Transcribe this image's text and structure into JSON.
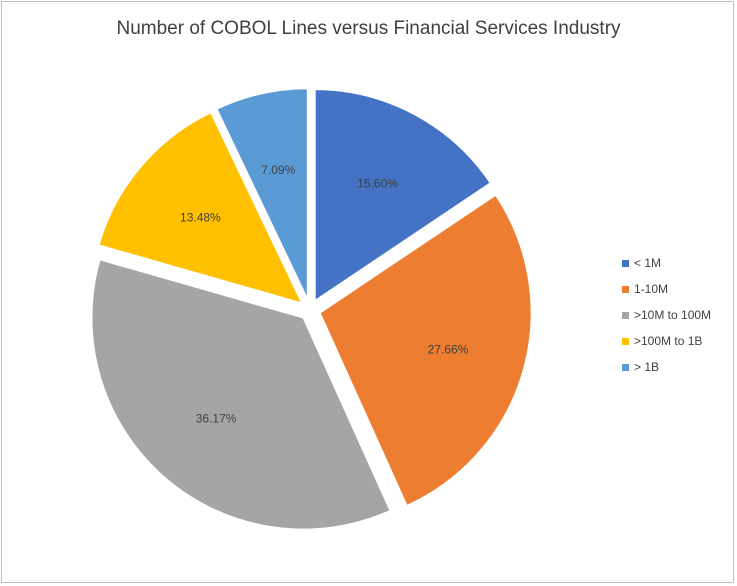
{
  "chart_data": {
    "type": "pie",
    "title": "Number of COBOL Lines versus Financial Services Industry",
    "categories": [
      "< 1M",
      "1-10M",
      ">10M to 100M",
      ">100M to 1B",
      "> 1B"
    ],
    "values": [
      15.6,
      27.66,
      36.17,
      13.48,
      7.09
    ],
    "data_labels": [
      "15.60%",
      "27.66%",
      "36.17%",
      "13.48%",
      "7.09%"
    ],
    "colors": [
      "#4472c4",
      "#ed7d31",
      "#a5a5a5",
      "#ffc000",
      "#5b9bd5"
    ],
    "exploded": true,
    "legend_position": "right"
  }
}
